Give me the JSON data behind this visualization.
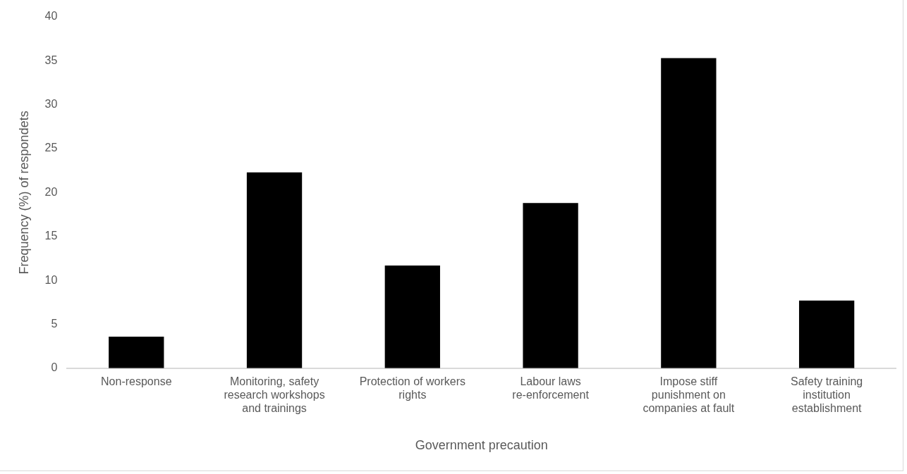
{
  "chart_data": {
    "type": "bar",
    "xlabel": "Government precaution",
    "ylabel": "Frequency (%) of respondets",
    "categories": [
      "Non-response",
      "Monitoring, safety research workshops and trainings",
      "Protection of workers rights",
      "Labour laws re-enforcement",
      "Impose stiff punishment on companies at fault",
      "Safety training institution establishment"
    ],
    "values": [
      3.6,
      22.3,
      11.7,
      18.8,
      35.3,
      7.7
    ],
    "color": "#000000",
    "ylim": [
      0,
      40
    ],
    "yticks": [
      0,
      5,
      10,
      15,
      20,
      25,
      30,
      35,
      40
    ],
    "grid": false,
    "legend": false
  }
}
